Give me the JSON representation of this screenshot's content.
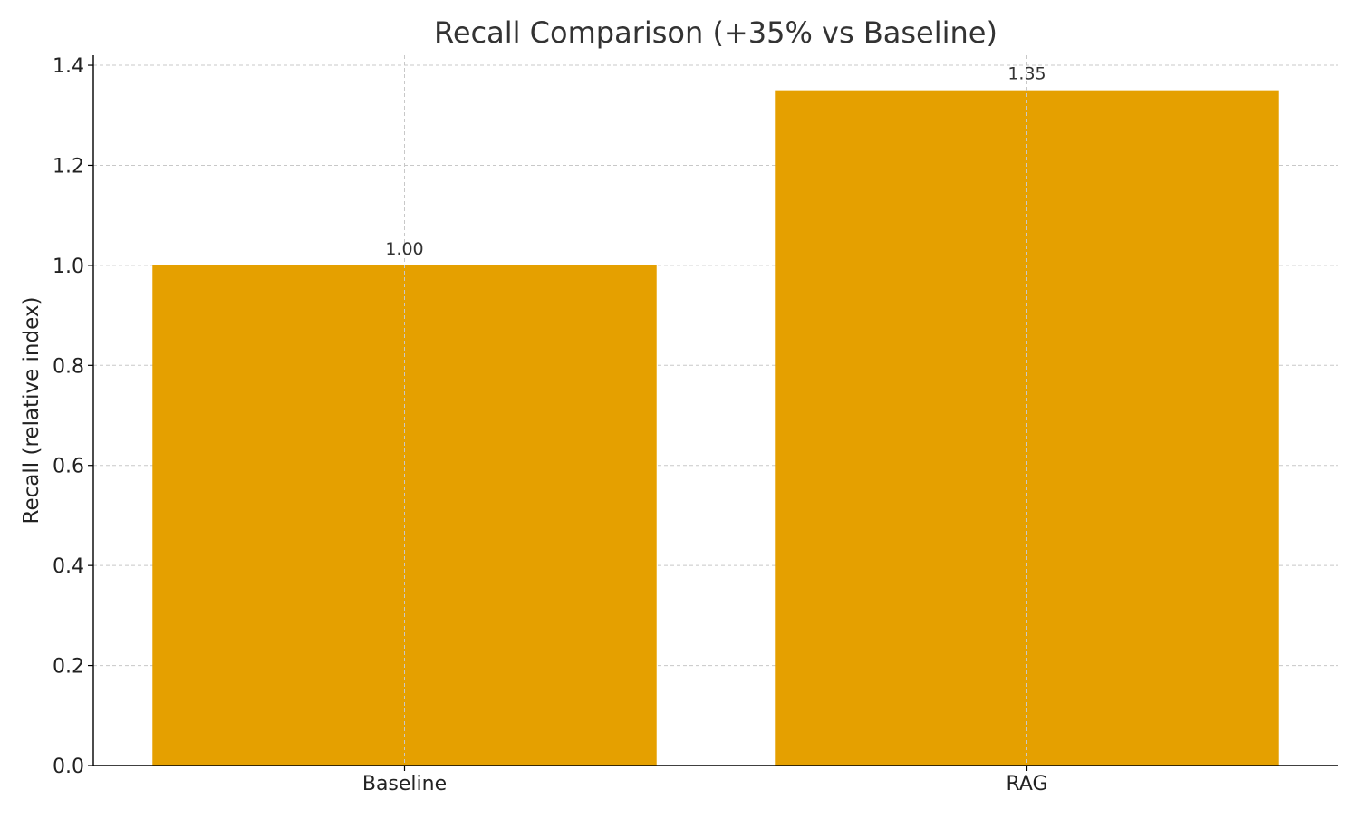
{
  "chart_data": {
    "type": "bar",
    "title": "Recall Comparison (+35% vs Baseline)",
    "xlabel": "",
    "ylabel": "Recall (relative index)",
    "categories": [
      "Baseline",
      "RAG"
    ],
    "values": [
      1.0,
      1.35
    ],
    "value_labels": [
      "1.00",
      "1.35"
    ],
    "ylim": [
      0,
      1.42
    ],
    "yticks": [
      0.0,
      0.2,
      0.4,
      0.6,
      0.8,
      1.0,
      1.2,
      1.4
    ],
    "ytick_labels": [
      "0.0",
      "0.2",
      "0.4",
      "0.6",
      "0.8",
      "1.0",
      "1.2",
      "1.4"
    ],
    "grid": true,
    "bar_color": "#E5A000",
    "grid_color": "#c8c8c8",
    "axis_color": "#000000",
    "text_color": "#333333"
  }
}
